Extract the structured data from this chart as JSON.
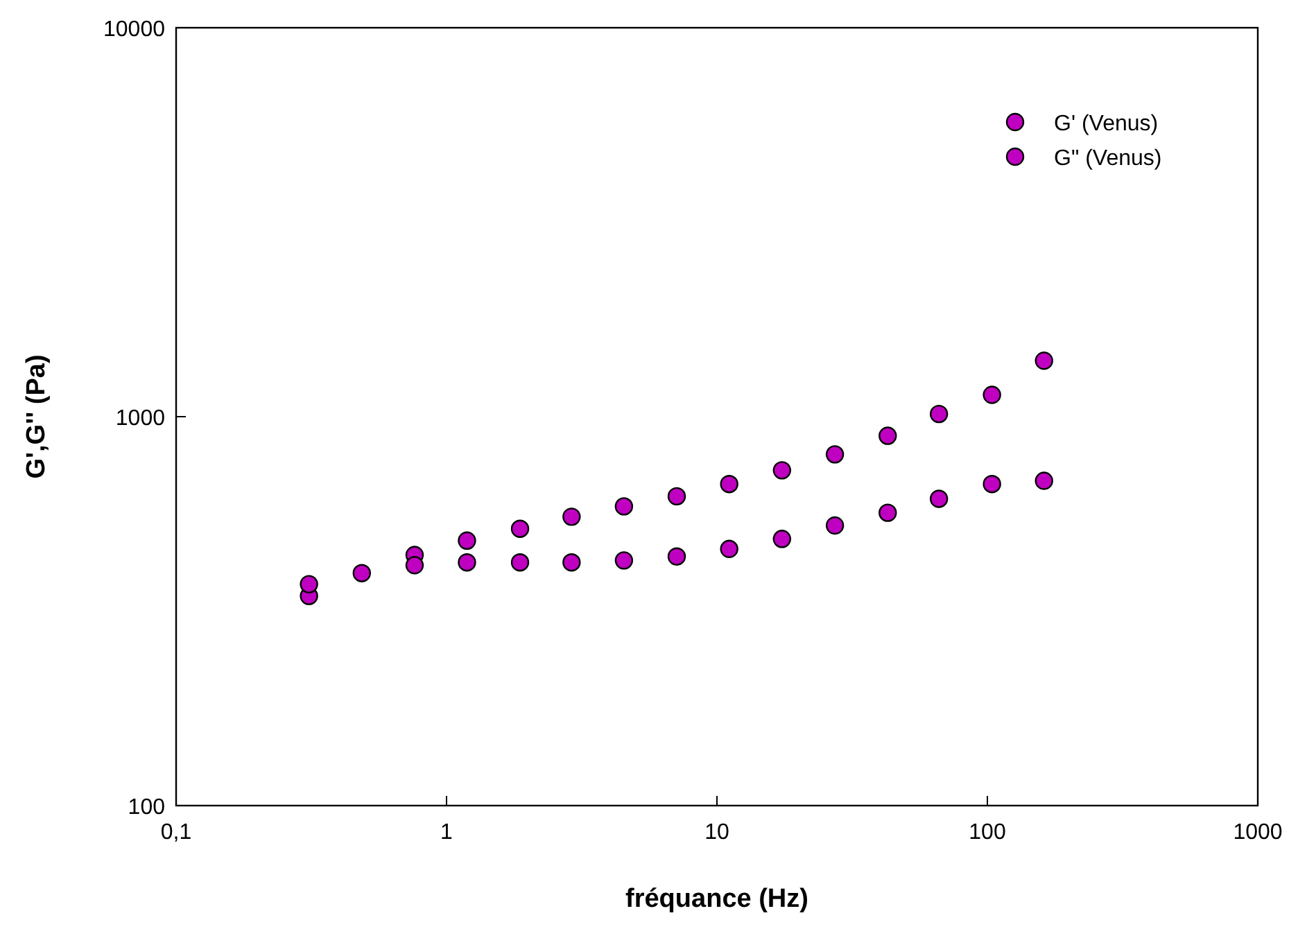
{
  "chart_data": {
    "type": "scatter",
    "xlabel": "fréquance (Hz)",
    "ylabel": "G',G'' (Pa)",
    "log": "xy",
    "marker": "circle",
    "legend": "top right",
    "grid": false,
    "x": [
      0.31,
      0.486,
      0.762,
      1.19,
      1.87,
      2.9,
      4.53,
      7.1,
      11.1,
      17.4,
      27.3,
      42.8,
      66.2,
      104,
      162
    ],
    "xlim": [
      0.1,
      1000
    ],
    "xticks": [
      {
        "value": 0.1,
        "label": "0,1"
      },
      1,
      10,
      100,
      1000
    ],
    "ylim": [
      100,
      10000
    ],
    "yticks": [
      100,
      1000,
      10000
    ],
    "series": [
      {
        "name": "G' (Venus)",
        "color": "#c000c0",
        "values": [
          346,
          396,
          441,
          480,
          515,
          553,
          588,
          624,
          671,
          728,
          800,
          893,
          1016,
          1138,
          1393
        ]
      },
      {
        "name": "G\" (Venus)",
        "color": "#c000c0",
        "values": [
          371,
          null,
          415,
          422,
          422,
          422,
          427,
          437,
          457,
          485,
          525,
          566,
          615,
          671,
          684
        ]
      }
    ]
  }
}
